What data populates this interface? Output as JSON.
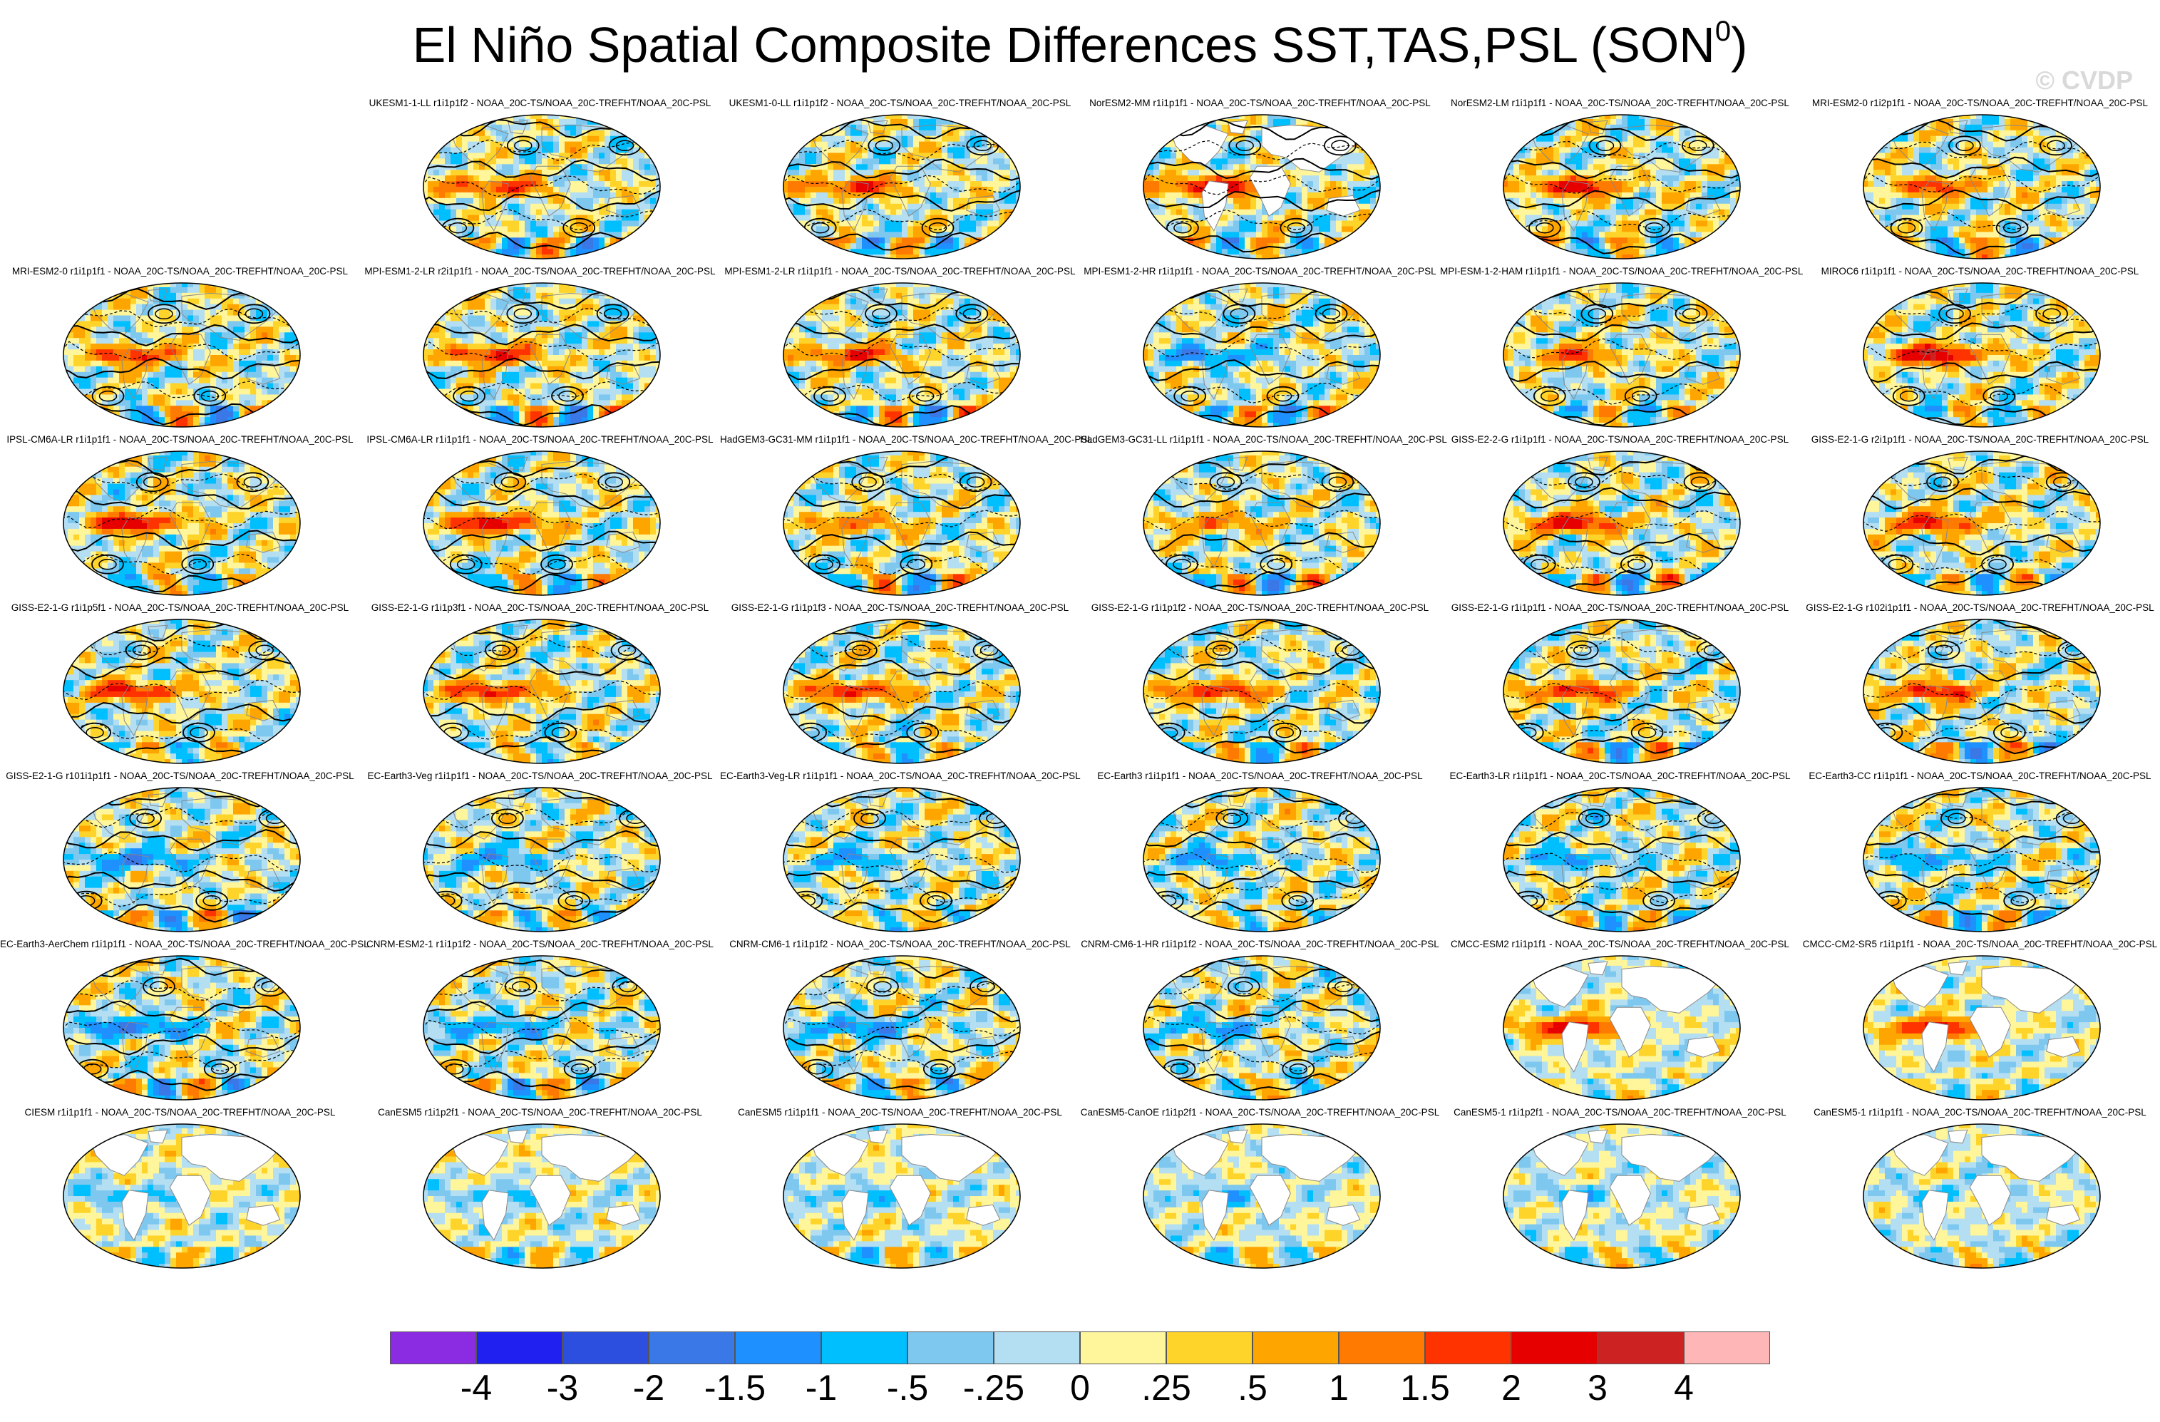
{
  "title": {
    "main": "El Niño Spatial Composite Differences SST,TAS,PSL (SON",
    "sup": "0",
    "close": ")"
  },
  "watermark": "© CVDP",
  "colors": {
    "ocean_neutral": "#b0dcf0",
    "land": "#ffffff",
    "contour": "#000000",
    "coast": "#888888"
  },
  "panels": [
    {
      "title": "UKESM1-1-LL r1i1p1f2 - NOAA_20C-TS/NOAA_20C-TREFHT/NOAA_20C-PSL",
      "style": "full",
      "amp": 0.9,
      "shift": 0.0
    },
    {
      "title": "UKESM1-0-LL r1i1p1f2 - NOAA_20C-TS/NOAA_20C-TREFHT/NOAA_20C-PSL",
      "style": "full",
      "amp": 0.9,
      "shift": 0.2
    },
    {
      "title": "NorESM2-MM r1i1p1f1 - NOAA_20C-TS/NOAA_20C-TREFHT/NOAA_20C-PSL",
      "style": "nolandfill",
      "amp": 1.3,
      "shift": 0.4
    },
    {
      "title": "NorESM2-LM r1i1p1f1 - NOAA_20C-TS/NOAA_20C-TREFHT/NOAA_20C-PSL",
      "style": "full",
      "amp": 1.1,
      "shift": 0.6
    },
    {
      "title": "MRI-ESM2-0 r1i2p1f1 - NOAA_20C-TS/NOAA_20C-TREFHT/NOAA_20C-PSL",
      "style": "full",
      "amp": 0.8,
      "shift": 0.8
    },
    {
      "title": "MRI-ESM2-0 r1i1p1f1 - NOAA_20C-TS/NOAA_20C-TREFHT/NOAA_20C-PSL",
      "style": "full",
      "amp": 0.9,
      "shift": 1.0
    },
    {
      "title": "MPI-ESM1-2-LR r2i1p1f1 - NOAA_20C-TS/NOAA_20C-TREFHT/NOAA_20C-PSL",
      "style": "full",
      "amp": 1.0,
      "shift": 1.2
    },
    {
      "title": "MPI-ESM1-2-LR r1i1p1f1 - NOAA_20C-TS/NOAA_20C-TREFHT/NOAA_20C-PSL",
      "style": "full",
      "amp": 0.9,
      "shift": 1.4
    },
    {
      "title": "MPI-ESM1-2-HR r1i1p1f1 - NOAA_20C-TS/NOAA_20C-TREFHT/NOAA_20C-PSL",
      "style": "full",
      "amp": -0.6,
      "shift": 1.6
    },
    {
      "title": "MPI-ESM-1-2-HAM r1i1p1f1 - NOAA_20C-TS/NOAA_20C-TREFHT/NOAA_20C-PSL",
      "style": "full",
      "amp": 0.7,
      "shift": 1.8
    },
    {
      "title": "MIROC6 r1i1p1f1 - NOAA_20C-TS/NOAA_20C-TREFHT/NOAA_20C-PSL",
      "style": "full",
      "amp": 1.4,
      "shift": 2.0
    },
    {
      "title": "IPSL-CM6A-LR r1i1p1f1 - NOAA_20C-TS/NOAA_20C-TREFHT/NOAA_20C-PSL",
      "style": "full",
      "amp": 1.2,
      "shift": 2.2
    },
    {
      "title": "IPSL-CM6A-LR r1i1p1f1 - NOAA_20C-TS/NOAA_20C-TREFHT/NOAA_20C-PSL",
      "style": "full",
      "amp": 1.2,
      "shift": 2.4
    },
    {
      "title": "HadGEM3-GC31-MM r1i1p1f1 - NOAA_20C-TS/NOAA_20C-TREFHT/NOAA_20C-PSL",
      "style": "full",
      "amp": 0.6,
      "shift": 2.6
    },
    {
      "title": "HadGEM3-GC31-LL r1i1p1f1 - NOAA_20C-TS/NOAA_20C-TREFHT/NOAA_20C-PSL",
      "style": "full",
      "amp": 0.6,
      "shift": 2.8
    },
    {
      "title": "GISS-E2-2-G r1i1p1f1 - NOAA_20C-TS/NOAA_20C-TREFHT/NOAA_20C-PSL",
      "style": "full",
      "amp": 1.1,
      "shift": 3.0
    },
    {
      "title": "GISS-E2-1-G r2i1p1f1 - NOAA_20C-TS/NOAA_20C-TREFHT/NOAA_20C-PSL",
      "style": "full",
      "amp": 1.0,
      "shift": 3.2
    },
    {
      "title": "GISS-E2-1-G r1i1p5f1 - NOAA_20C-TS/NOAA_20C-TREFHT/NOAA_20C-PSL",
      "style": "full",
      "amp": 1.0,
      "shift": 3.4
    },
    {
      "title": "GISS-E2-1-G r1i1p3f1 - NOAA_20C-TS/NOAA_20C-TREFHT/NOAA_20C-PSL",
      "style": "full",
      "amp": 1.0,
      "shift": 3.6
    },
    {
      "title": "GISS-E2-1-G r1i1p1f3 - NOAA_20C-TS/NOAA_20C-TREFHT/NOAA_20C-PSL",
      "style": "full",
      "amp": 1.0,
      "shift": 3.8
    },
    {
      "title": "GISS-E2-1-G r1i1p1f2 - NOAA_20C-TS/NOAA_20C-TREFHT/NOAA_20C-PSL",
      "style": "full",
      "amp": 1.0,
      "shift": 4.0
    },
    {
      "title": "GISS-E2-1-G r1i1p1f1 - NOAA_20C-TS/NOAA_20C-TREFHT/NOAA_20C-PSL",
      "style": "full",
      "amp": 1.0,
      "shift": 4.2
    },
    {
      "title": "GISS-E2-1-G r102i1p1f1 - NOAA_20C-TS/NOAA_20C-TREFHT/NOAA_20C-PSL",
      "style": "full",
      "amp": 1.0,
      "shift": 4.4
    },
    {
      "title": "GISS-E2-1-G r101i1p1f1 - NOAA_20C-TS/NOAA_20C-TREFHT/NOAA_20C-PSL",
      "style": "full",
      "amp": -0.7,
      "shift": 4.6
    },
    {
      "title": "EC-Earth3-Veg r1i1p1f1 - NOAA_20C-TS/NOAA_20C-TREFHT/NOAA_20C-PSL",
      "style": "full",
      "amp": -0.5,
      "shift": 4.8
    },
    {
      "title": "EC-Earth3-Veg-LR r1i1p1f1 - NOAA_20C-TS/NOAA_20C-TREFHT/NOAA_20C-PSL",
      "style": "full",
      "amp": -0.5,
      "shift": 5.0
    },
    {
      "title": "EC-Earth3 r1i1p1f1 - NOAA_20C-TS/NOAA_20C-TREFHT/NOAA_20C-PSL",
      "style": "full",
      "amp": -0.5,
      "shift": 5.2
    },
    {
      "title": "EC-Earth3-LR r1i1p1f1 - NOAA_20C-TS/NOAA_20C-TREFHT/NOAA_20C-PSL",
      "style": "full",
      "amp": -0.5,
      "shift": 5.4
    },
    {
      "title": "EC-Earth3-CC r1i1p1f1 - NOAA_20C-TS/NOAA_20C-TREFHT/NOAA_20C-PSL",
      "style": "full",
      "amp": -0.5,
      "shift": 5.6
    },
    {
      "title": "EC-Earth3-AerChem r1i1p1f1 - NOAA_20C-TS/NOAA_20C-TREFHT/NOAA_20C-PSL",
      "style": "full",
      "amp": -0.8,
      "shift": 5.8
    },
    {
      "title": "CNRM-ESM2-1 r1i1p1f2 - NOAA_20C-TS/NOAA_20C-TREFHT/NOAA_20C-PSL",
      "style": "full",
      "amp": -0.6,
      "shift": 6.0
    },
    {
      "title": "CNRM-CM6-1 r1i1p1f2 - NOAA_20C-TS/NOAA_20C-TREFHT/NOAA_20C-PSL",
      "style": "full",
      "amp": -0.7,
      "shift": 6.2
    },
    {
      "title": "CNRM-CM6-1-HR r1i1p1f2 - NOAA_20C-TS/NOAA_20C-TREFHT/NOAA_20C-PSL",
      "style": "full",
      "amp": -0.5,
      "shift": 6.4
    },
    {
      "title": "CMCC-ESM2 r1i1p1f1 - NOAA_20C-TS/NOAA_20C-TREFHT/NOAA_20C-PSL",
      "style": "sstonly",
      "amp": 1.8,
      "shift": 6.6
    },
    {
      "title": "CMCC-CM2-SR5 r1i1p1f1 - NOAA_20C-TS/NOAA_20C-TREFHT/NOAA_20C-PSL",
      "style": "sstonly",
      "amp": 1.6,
      "shift": 6.8
    },
    {
      "title": "CIESM r1i1p1f1 - NOAA_20C-TS/NOAA_20C-TREFHT/NOAA_20C-PSL",
      "style": "sstonly",
      "amp": -0.6,
      "shift": 7.0
    },
    {
      "title": "CanESM5 r1i1p2f1 - NOAA_20C-TS/NOAA_20C-TREFHT/NOAA_20C-PSL",
      "style": "sstonly",
      "amp": -0.5,
      "shift": 7.2
    },
    {
      "title": "CanESM5 r1i1p1f1 - NOAA_20C-TS/NOAA_20C-TREFHT/NOAA_20C-PSL",
      "style": "sstonly",
      "amp": -0.5,
      "shift": 7.4
    },
    {
      "title": "CanESM5-CanOE r1i1p2f1 - NOAA_20C-TS/NOAA_20C-TREFHT/NOAA_20C-PSL",
      "style": "sstonly",
      "amp": -0.5,
      "shift": 7.6
    },
    {
      "title": "CanESM5-1 r1i1p2f1 - NOAA_20C-TS/NOAA_20C-TREFHT/NOAA_20C-PSL",
      "style": "sstonly",
      "amp": -0.5,
      "shift": 7.8
    },
    {
      "title": "CanESM5-1 r1i1p1f1 - NOAA_20C-TS/NOAA_20C-TREFHT/NOAA_20C-PSL",
      "style": "sstonly",
      "amp": -0.4,
      "shift": 8.0
    }
  ],
  "chart_data": {
    "type": "heatmap",
    "title": "El Niño Spatial Composite Differences SST,TAS,PSL (SON0)",
    "projection": "global ellipse (Robinson-like)",
    "fields": [
      "SST",
      "TAS",
      "PSL"
    ],
    "grid_layout": {
      "columns": 6,
      "rows": 7,
      "first_row_offset_columns": 1
    },
    "colorbar": {
      "labels": [
        "-4",
        "-3",
        "-2",
        "-1.5",
        "-1",
        "-.5",
        "-.25",
        "0",
        ".25",
        ".5",
        "1",
        "1.5",
        "2",
        "3",
        "4"
      ],
      "levels": [
        -4,
        -3,
        -2,
        -1.5,
        -1,
        -0.5,
        -0.25,
        0,
        0.25,
        0.5,
        1,
        1.5,
        2,
        3,
        4
      ],
      "colors": [
        "#8b2be2",
        "#2020f0",
        "#2c4fe0",
        "#3a78e8",
        "#1e90ff",
        "#00bfff",
        "#7ec8f0",
        "#b4def2",
        "#fff59a",
        "#ffd42a",
        "#ffa500",
        "#ff7a00",
        "#ff3300",
        "#e60000",
        "#cc2222",
        "#ffb6b6"
      ]
    }
  }
}
